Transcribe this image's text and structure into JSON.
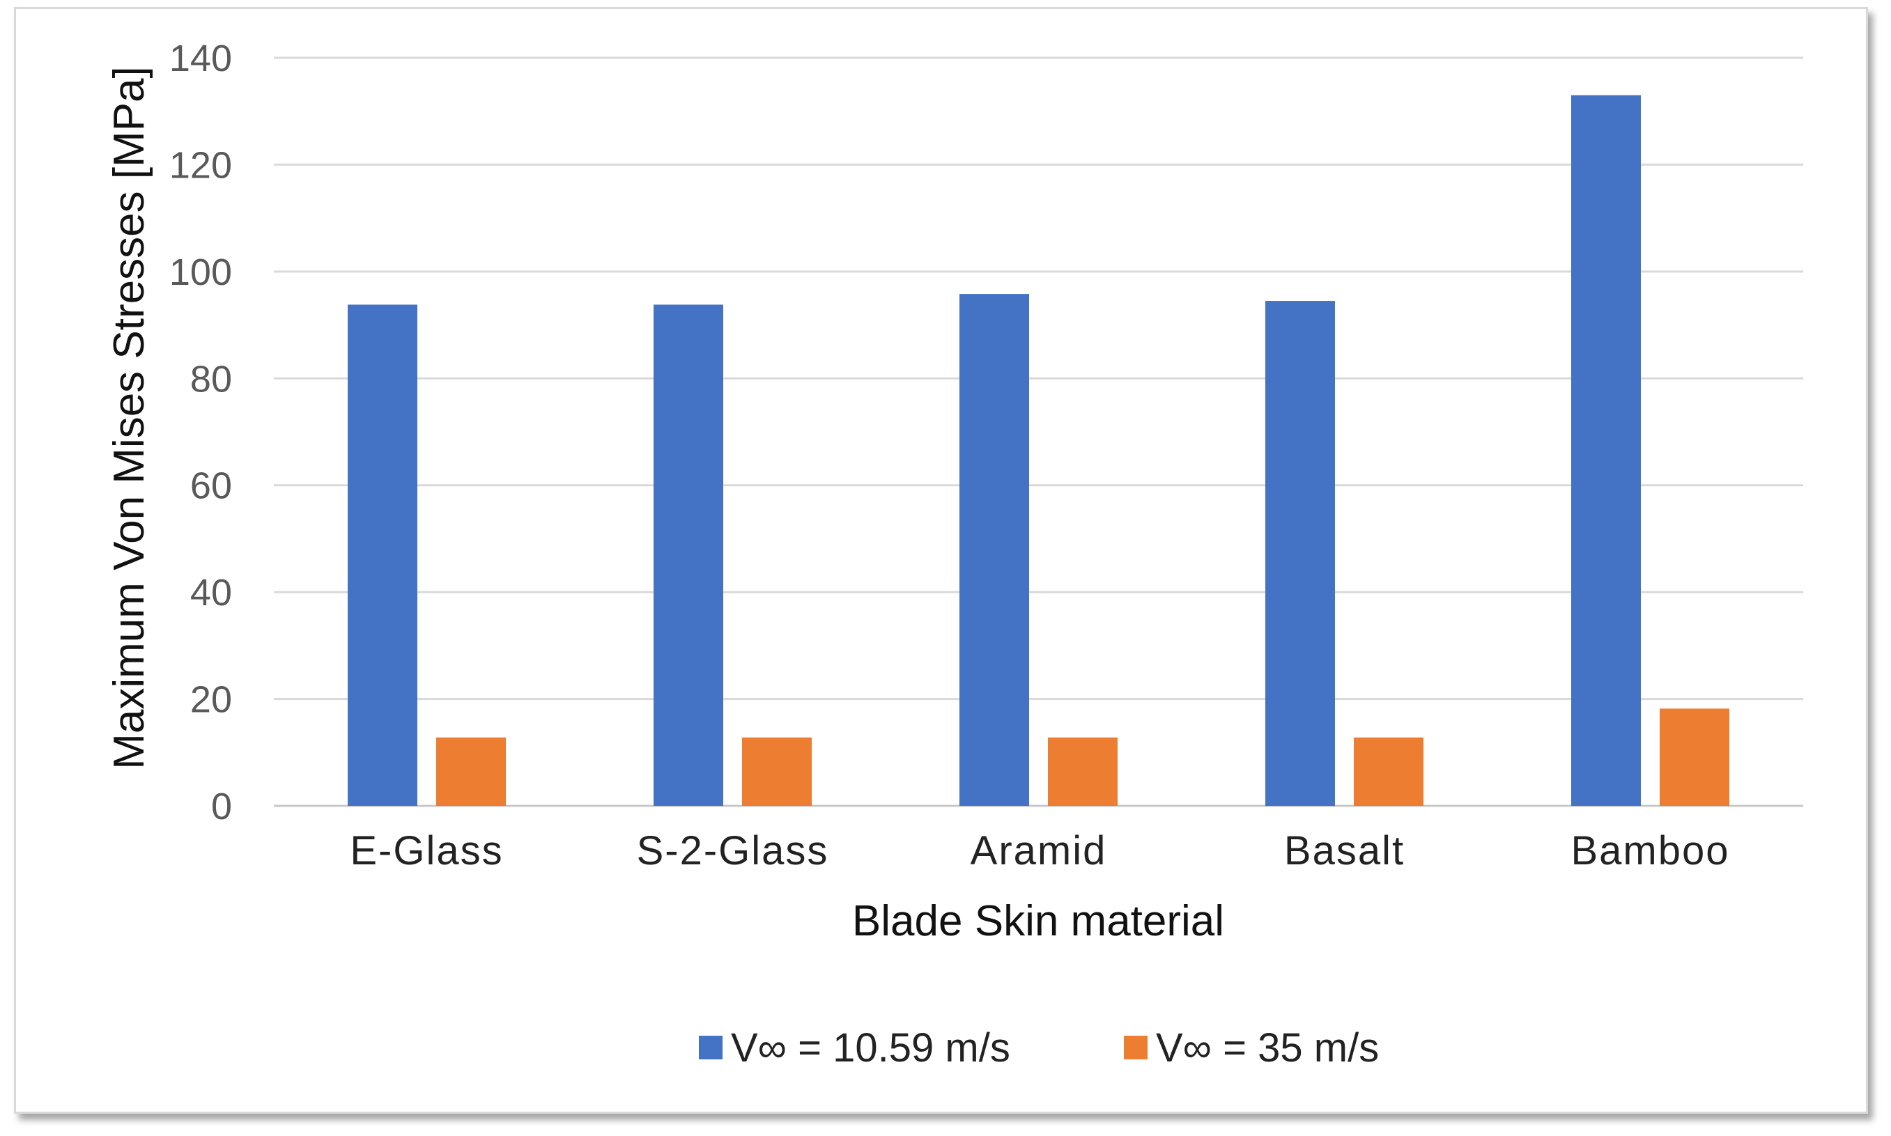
{
  "chart_data": {
    "type": "bar",
    "title": "",
    "xlabel": "Blade Skin material",
    "ylabel": "Maximum Von Mises Stresses [MPa]",
    "ylim": [
      0,
      140
    ],
    "yticks": [
      0,
      20,
      40,
      60,
      80,
      100,
      120,
      140
    ],
    "grid": true,
    "legend_position": "bottom",
    "categories": [
      "E-Glass",
      "S-2-Glass",
      "Aramid",
      "Basalt",
      "Bamboo"
    ],
    "series": [
      {
        "name": "V∞ = 10.59 m/s",
        "color": "#4472C4",
        "values": [
          93.8,
          93.8,
          95.8,
          94.5,
          133
        ]
      },
      {
        "name": "V∞ = 35 m/s",
        "color": "#ED7D31",
        "values": [
          12.8,
          12.8,
          12.8,
          12.8,
          18.2
        ]
      }
    ]
  }
}
